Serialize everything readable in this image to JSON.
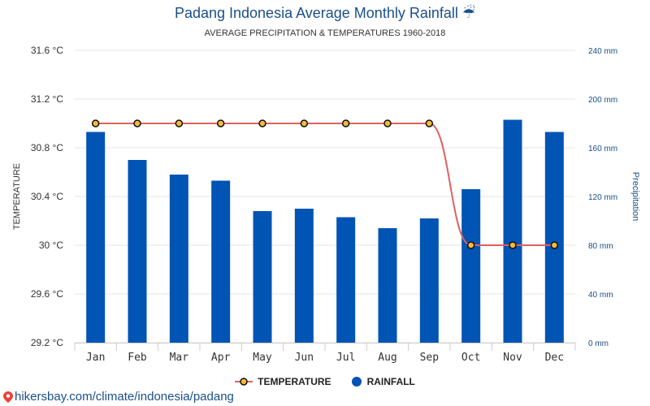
{
  "header": {
    "title": "Padang Indonesia Average Monthly Rainfall",
    "title_icon": "umbrella-rain-icon",
    "title_icon_glyph": "☔",
    "subtitle": "AVERAGE PRECIPITATION & TEMPERATURES 1960-2018"
  },
  "colors": {
    "rainfall": "#0054b4",
    "temperature_line": "#e06060",
    "temperature_marker_fill": "#f6b93b",
    "temperature_marker_stroke": "#111111",
    "grid": "#e6e6e6",
    "brand": "#1a4f8a"
  },
  "chart_data": {
    "type": "bar",
    "categories": [
      "Jan",
      "Feb",
      "Mar",
      "Apr",
      "May",
      "Jun",
      "Jul",
      "Aug",
      "Sep",
      "Oct",
      "Nov",
      "Dec"
    ],
    "series": [
      {
        "name": "RAINFALL",
        "type": "bar",
        "axis": "right",
        "unit": "mm",
        "values": [
          173,
          150,
          138,
          133,
          108,
          110,
          103,
          94,
          102,
          126,
          183,
          173
        ]
      },
      {
        "name": "TEMPERATURE",
        "type": "line",
        "axis": "left",
        "unit": "°C",
        "values": [
          31,
          31,
          31,
          31,
          31,
          31,
          31,
          31,
          31,
          30,
          30,
          30
        ]
      }
    ],
    "ylabel_left": "TEMPERATURE",
    "ylabel_right": "Precipitation",
    "ylim_left": [
      29.2,
      31.6
    ],
    "ylim_right": [
      0,
      240
    ],
    "yticks_left": [
      "29.2 °C",
      "29.6 °C",
      "30 °C",
      "30.4 °C",
      "30.8 °C",
      "31.2 °C",
      "31.6 °C"
    ],
    "yticks_right": [
      "0 mm",
      "40 mm",
      "80 mm",
      "120 mm",
      "160 mm",
      "200 mm",
      "240 mm"
    ],
    "grid": true,
    "legend": [
      "TEMPERATURE",
      "RAINFALL"
    ],
    "legend_position": "bottom-center"
  },
  "footer": {
    "link_text": "hikersbay.com/climate/indonesia/padang",
    "icon": "map-pin-icon"
  }
}
